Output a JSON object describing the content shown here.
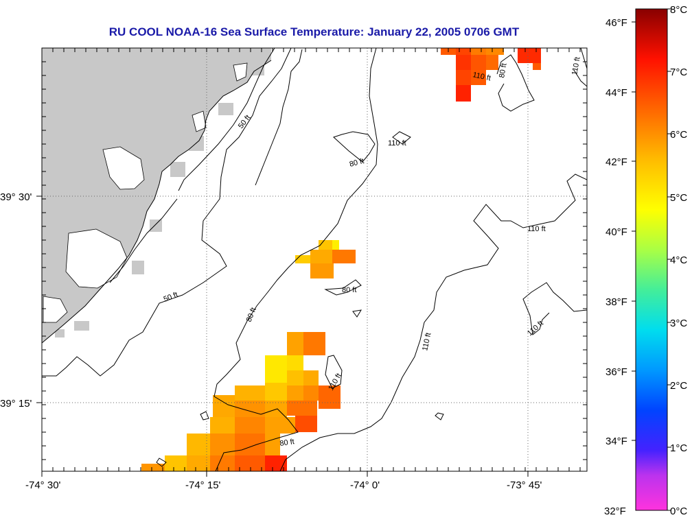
{
  "title": "RU COOL  NOAA-16  Sea Surface Temperature:  January 22, 2005 0706 GMT",
  "map": {
    "longitude_labels": [
      "-74° 30'",
      "-74° 15'",
      "-74° 0'",
      "-73° 45'"
    ],
    "latitude_labels": [
      "39° 30'",
      "39° 15'"
    ],
    "contour_labels": [
      "50 ft",
      "50 ft",
      "80 ft",
      "80 ft",
      "80 ft",
      "80 ft",
      "80 ft",
      "110 ft",
      "110 ft",
      "110 ft",
      "110 ft",
      "110 ft",
      "110 ft",
      "110 ft"
    ],
    "colors": {
      "land": "#c8c8c8",
      "ocean": "#ffffff",
      "contour": "#000000",
      "grid": "#666666"
    }
  },
  "colorbar": {
    "fahrenheit_labels": [
      "46°F",
      "44°F",
      "42°F",
      "40°F",
      "38°F",
      "36°F",
      "34°F",
      "32°F"
    ],
    "celsius_labels": [
      "8°C",
      "7°C",
      "6°C",
      "5°C",
      "4°C",
      "3°C",
      "2°C",
      "1°C",
      "0°C"
    ],
    "min_f": 32,
    "max_f": 46.4
  }
}
